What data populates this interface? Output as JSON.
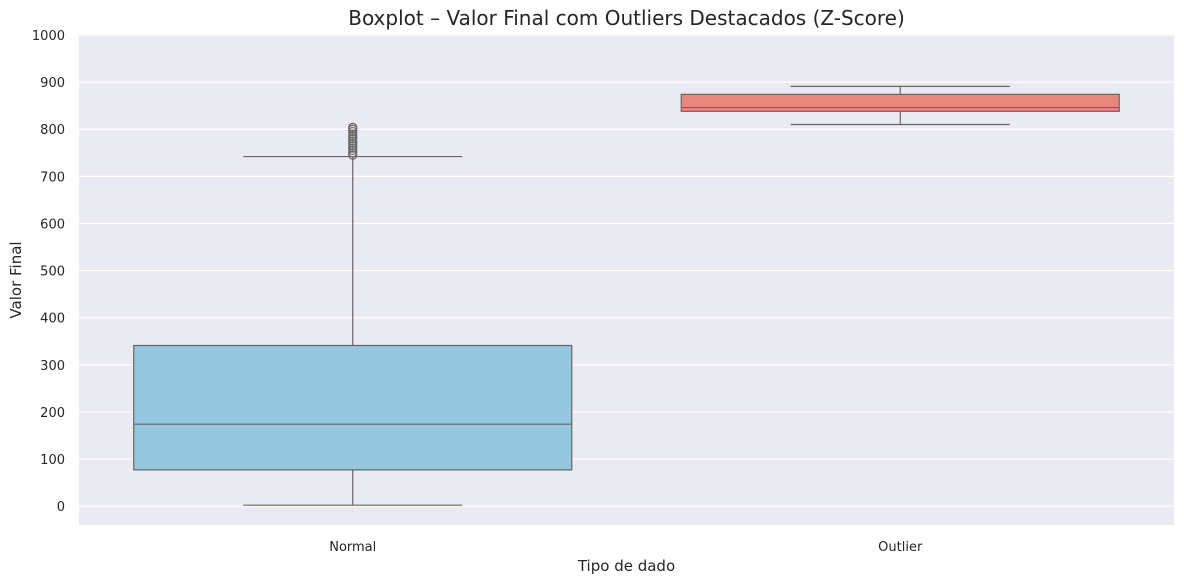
{
  "chart_data": {
    "type": "boxplot",
    "title": "Boxplot – Valor Final com Outliers Destacados (Z-Score)",
    "xlabel": "Tipo de dado",
    "ylabel": "Valor Final",
    "ylim": [
      -40,
      1000
    ],
    "yticks": [
      0,
      100,
      200,
      300,
      400,
      500,
      600,
      700,
      800,
      900,
      1000
    ],
    "grid": true,
    "categories": [
      "Normal",
      "Outlier"
    ],
    "boxes": [
      {
        "category": "Normal",
        "whisker_low": 2,
        "q1": 77,
        "median": 174,
        "q3": 341,
        "whisker_high": 742,
        "fliers": [
          745,
          750,
          755,
          760,
          765,
          770,
          775,
          780,
          785,
          790,
          795,
          800,
          804
        ],
        "color": "#95c8de"
      },
      {
        "category": "Outlier",
        "whisker_low": 810,
        "q1": 838,
        "median": 846,
        "q3": 874,
        "whisker_high": 891,
        "fliers": [],
        "color": "#e8877c"
      }
    ],
    "colors": {
      "background": "#eaeaf2",
      "grid": "#ffffff",
      "line": "#656565"
    }
  }
}
